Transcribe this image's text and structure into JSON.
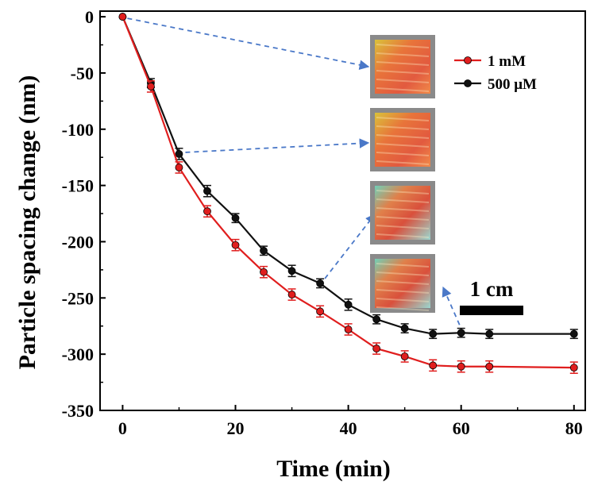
{
  "chart_data": {
    "type": "line",
    "title": "",
    "xlabel": "Time (min)",
    "ylabel": "Particle spacing change (nm)",
    "xlim": [
      -4,
      82
    ],
    "ylim": [
      -350,
      5
    ],
    "xticks": [
      0,
      20,
      40,
      60,
      80
    ],
    "yticks": [
      0,
      -50,
      -100,
      -150,
      -200,
      -250,
      -300,
      -350
    ],
    "legend_position": "top-right",
    "series": [
      {
        "name": "1 mM",
        "color": "#e01e1e",
        "x": [
          0,
          5,
          10,
          15,
          20,
          25,
          30,
          35,
          40,
          45,
          50,
          55,
          60,
          65,
          80
        ],
        "y": [
          0,
          -62,
          -134,
          -173,
          -203,
          -227,
          -247,
          -262,
          -278,
          -295,
          -302,
          -310,
          -311,
          -311,
          -312
        ],
        "err": [
          0,
          5,
          5,
          5,
          5,
          5,
          5,
          5,
          5,
          5,
          5,
          5,
          5,
          5,
          5
        ]
      },
      {
        "name": "500 μM",
        "color": "#111111",
        "x": [
          0,
          5,
          10,
          15,
          20,
          25,
          30,
          35,
          40,
          45,
          50,
          55,
          60,
          65,
          80
        ],
        "y": [
          0,
          -59,
          -122,
          -155,
          -179,
          -208,
          -226,
          -237,
          -256,
          -269,
          -277,
          -282,
          -281,
          -282,
          -282
        ],
        "err": [
          0,
          4,
          5,
          5,
          4,
          4,
          5,
          4,
          5,
          4,
          4,
          4,
          4,
          4,
          4
        ]
      }
    ],
    "scale_bar_label": "1 cm",
    "inset_photo_count": 4
  },
  "colors": {
    "arrow": "#4a78c8",
    "axis": "#000000"
  }
}
